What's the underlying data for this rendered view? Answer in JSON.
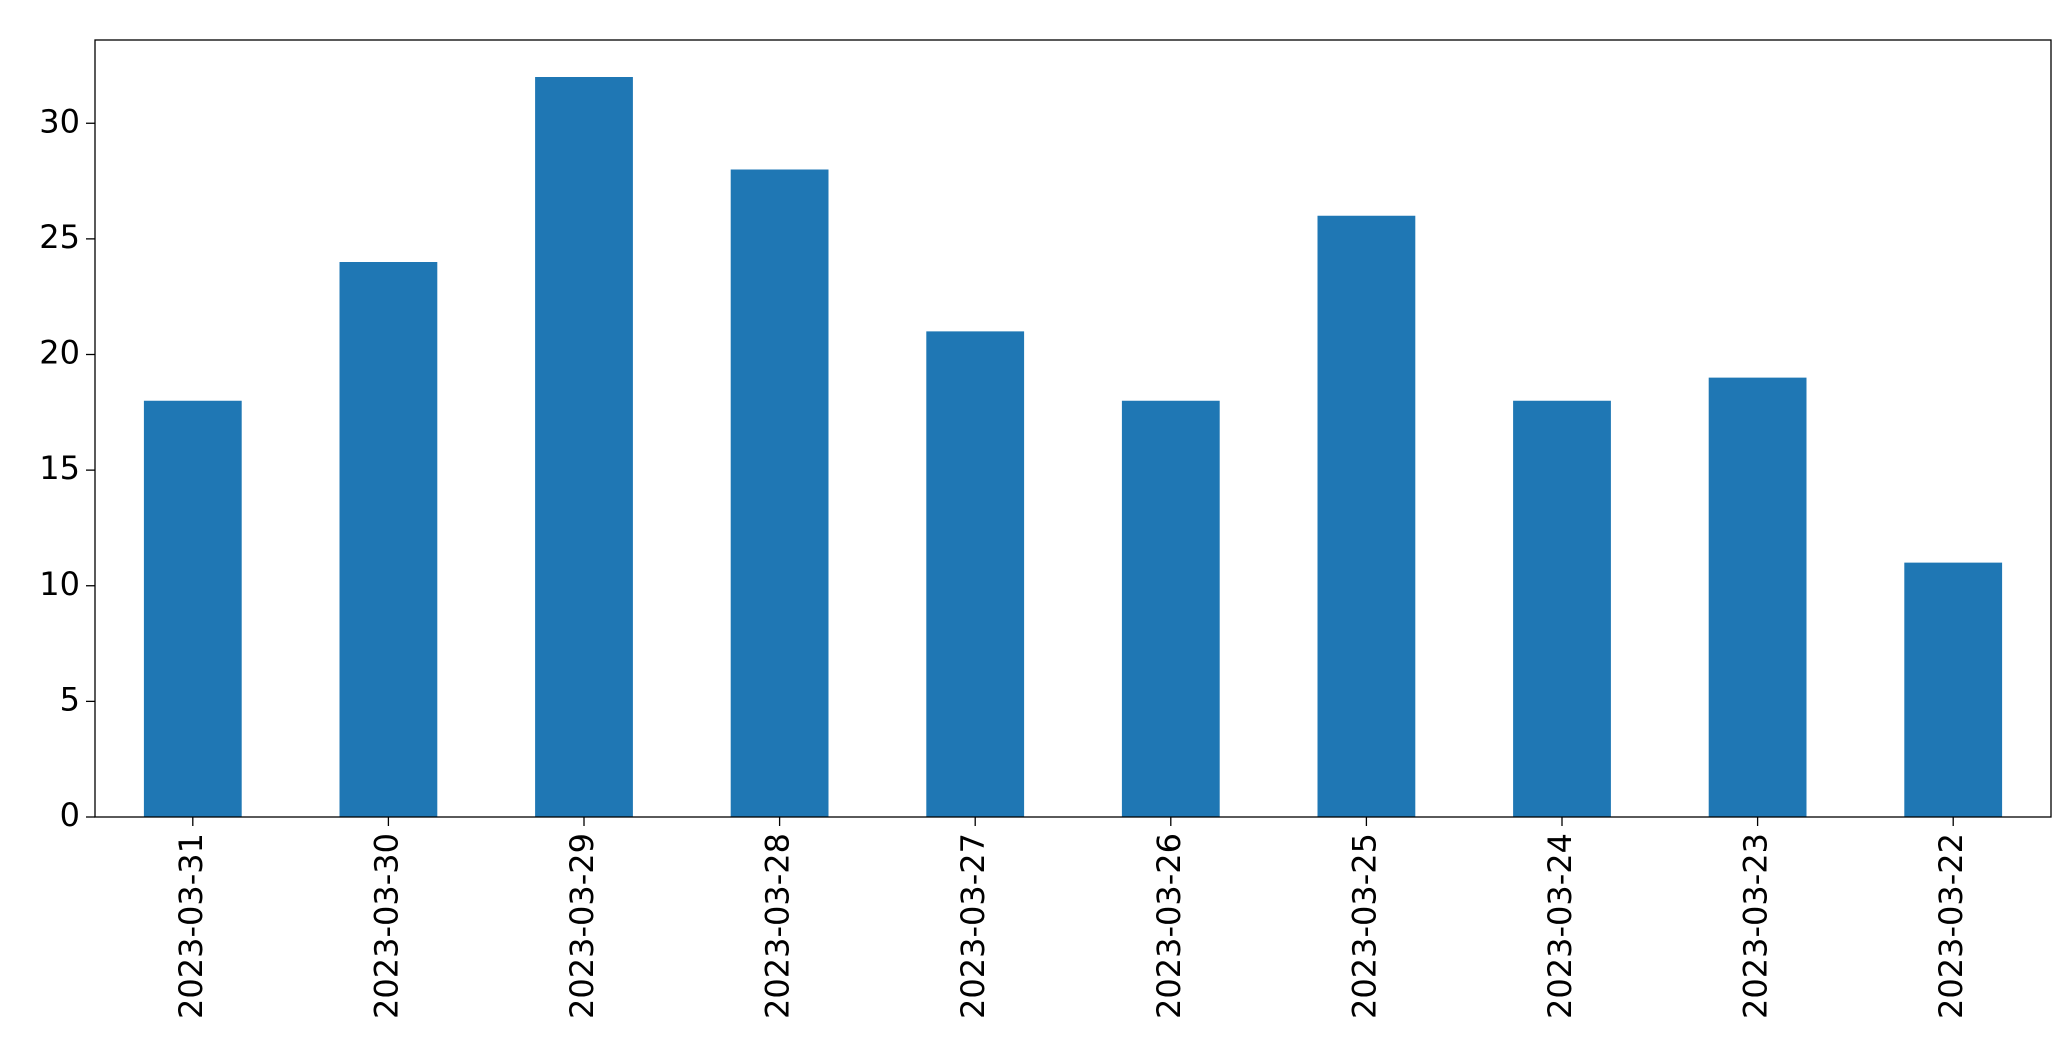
{
  "chart_data": {
    "type": "bar",
    "categories": [
      "2023-03-31",
      "2023-03-30",
      "2023-03-29",
      "2023-03-28",
      "2023-03-27",
      "2023-03-26",
      "2023-03-25",
      "2023-03-24",
      "2023-03-23",
      "2023-03-22"
    ],
    "values": [
      18,
      24,
      32,
      28,
      21,
      18,
      26,
      18,
      19,
      11
    ],
    "color": "#1f77b4",
    "ylim": [
      0,
      33.6
    ],
    "yticks": [
      0,
      5,
      10,
      15,
      20,
      25,
      30
    ],
    "grid": false
  }
}
